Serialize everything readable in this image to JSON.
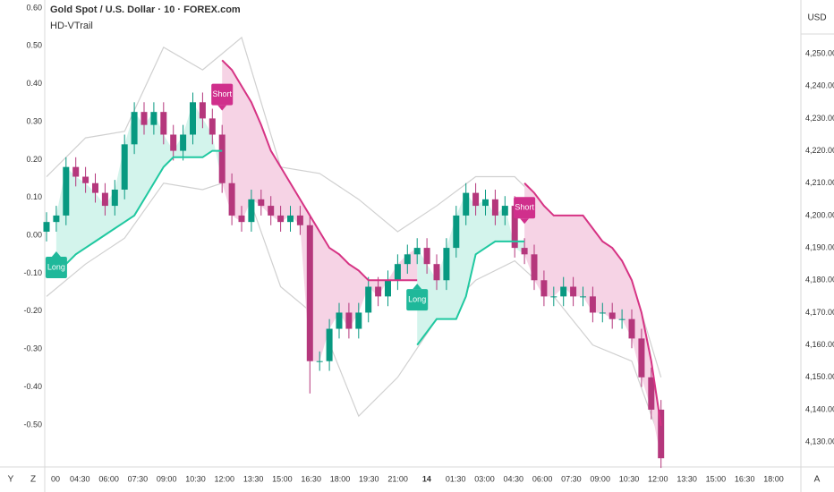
{
  "chart_data": {
    "type": "candlestick",
    "title": "Gold Spot / U.S. Dollar · 10 · FOREX.com",
    "subtitle": "HD-VTrail",
    "currency": "USD",
    "buttons": [
      "Y",
      "Z",
      "A"
    ],
    "x_labels": [
      "00",
      "04:30",
      "06:00",
      "07:30",
      "09:00",
      "10:30",
      "12:00",
      "13:30",
      "15:00",
      "16:30",
      "18:00",
      "19:30",
      "21:00",
      "14",
      "01:30",
      "03:00",
      "04:30",
      "06:00",
      "07:30",
      "09:00",
      "10:30",
      "12:00",
      "13:30",
      "15:00",
      "16:30",
      "18:00"
    ],
    "open": [
      4195,
      4198,
      4200,
      4215,
      4212,
      4210,
      4207,
      4203,
      4208,
      4222,
      4232,
      4228,
      4232,
      4225,
      4220,
      4225,
      4235,
      4230,
      4225,
      4210,
      4200,
      4198,
      4205,
      4203,
      4200,
      4198,
      4200,
      4197,
      4155,
      4155,
      4165,
      4170,
      4165,
      4170,
      4178,
      4175,
      4180,
      4185,
      4188,
      4190,
      4185,
      4180,
      4190,
      4200,
      4207,
      4203,
      4205,
      4200,
      4203,
      4190,
      4188,
      4180,
      4175,
      4175,
      4178,
      4175,
      4175,
      4170,
      4170,
      4168,
      4168,
      4162,
      4150,
      4140
    ],
    "high": [
      4201,
      4203,
      4218,
      4218,
      4215,
      4213,
      4210,
      4211,
      4225,
      4235,
      4235,
      4235,
      4235,
      4228,
      4228,
      4238,
      4238,
      4233,
      4228,
      4213,
      4203,
      4208,
      4208,
      4206,
      4203,
      4203,
      4203,
      4200,
      4158,
      4168,
      4173,
      4173,
      4173,
      4181,
      4181,
      4183,
      4188,
      4191,
      4193,
      4193,
      4188,
      4193,
      4203,
      4210,
      4210,
      4208,
      4208,
      4206,
      4206,
      4193,
      4191,
      4183,
      4178,
      4181,
      4181,
      4178,
      4178,
      4173,
      4173,
      4171,
      4171,
      4165,
      4153,
      4143
    ],
    "low": [
      4192,
      4195,
      4197,
      4209,
      4207,
      4204,
      4200,
      4200,
      4205,
      4219,
      4225,
      4225,
      4222,
      4217,
      4217,
      4222,
      4227,
      4222,
      4207,
      4197,
      4195,
      4195,
      4200,
      4197,
      4195,
      4195,
      4194,
      4145,
      4152,
      4152,
      4162,
      4162,
      4162,
      4167,
      4172,
      4172,
      4177,
      4182,
      4185,
      4182,
      4177,
      4177,
      4187,
      4197,
      4200,
      4200,
      4197,
      4197,
      4187,
      4185,
      4177,
      4172,
      4172,
      4172,
      4172,
      4172,
      4167,
      4167,
      4165,
      4165,
      4159,
      4147,
      4137,
      4122
    ],
    "close": [
      4198,
      4200,
      4215,
      4212,
      4210,
      4207,
      4203,
      4208,
      4222,
      4232,
      4228,
      4232,
      4225,
      4220,
      4225,
      4235,
      4230,
      4225,
      4210,
      4200,
      4198,
      4205,
      4203,
      4200,
      4198,
      4200,
      4197,
      4155,
      4155,
      4165,
      4170,
      4165,
      4170,
      4178,
      4175,
      4180,
      4185,
      4188,
      4190,
      4185,
      4180,
      4190,
      4200,
      4207,
      4203,
      4205,
      4200,
      4203,
      4190,
      4188,
      4180,
      4175,
      4175,
      4178,
      4175,
      4175,
      4170,
      4170,
      4168,
      4168,
      4162,
      4150,
      4140,
      4125
    ],
    "up_color": "#089981",
    "down_color": "#b5377c",
    "series": [
      {
        "color": "#1fc8a0",
        "fill": "#d3f4ec",
        "values": [
          null,
          4182,
          4185,
          4188,
          4190,
          4192,
          4194,
          4196,
          4198,
          4200,
          4205,
          4210,
          4215,
          4218,
          4218,
          4218,
          4218,
          4220,
          4220,
          null,
          null,
          null,
          null,
          null,
          null,
          null,
          null,
          null,
          null,
          null,
          null,
          null,
          null,
          null,
          null,
          null,
          null,
          null,
          4160,
          4164,
          4168,
          4168,
          4168,
          4175,
          4188,
          4190,
          4192,
          4192,
          4192,
          4192,
          null,
          null,
          null,
          null,
          null,
          null,
          null,
          null,
          null,
          null,
          null,
          null,
          null,
          null
        ]
      },
      {
        "color": "#d63384",
        "fill": "#f6d3e5",
        "values": [
          null,
          null,
          null,
          null,
          null,
          null,
          null,
          null,
          null,
          null,
          null,
          null,
          null,
          null,
          null,
          null,
          null,
          null,
          4248,
          4245,
          4240,
          4235,
          4228,
          4220,
          4215,
          4210,
          4205,
          4200,
          4195,
          4190,
          4188,
          4185,
          4183,
          4180,
          4180,
          4180,
          4180,
          4180,
          4180,
          null,
          null,
          null,
          null,
          null,
          null,
          null,
          null,
          null,
          null,
          4210,
          4207,
          4203,
          4200,
          4200,
          4200,
          4200,
          4196,
          4192,
          4190,
          4186,
          4180,
          4170,
          4155,
          4135
        ]
      }
    ],
    "bands": {
      "color": "#d0d0d0",
      "index": [
        0,
        4,
        8,
        12,
        16,
        20,
        24,
        28,
        32,
        36,
        40,
        44,
        48,
        52,
        56,
        60,
        63
      ],
      "upper": [
        4212,
        4224,
        4226,
        4252,
        4245,
        4255,
        4215,
        4213,
        4205,
        4195,
        4203,
        4212,
        4212,
        4200,
        4188,
        4180,
        4150
      ],
      "lower": [
        4175,
        4185,
        4193,
        4210,
        4208,
        4212,
        4178,
        4168,
        4138,
        4150,
        4168,
        4180,
        4186,
        4175,
        4160,
        4155,
        4130
      ]
    },
    "signals": [
      {
        "label": "Long",
        "at": 1,
        "color": "#1fb89a"
      },
      {
        "label": "Short",
        "at": 18,
        "color": "#d02f8c"
      },
      {
        "label": "Long",
        "at": 38,
        "color": "#1fb89a"
      },
      {
        "label": "Short",
        "at": 49,
        "color": "#d02f8c"
      }
    ],
    "ylim": [
      -0.611,
      0.621
    ],
    "yticks": [
      {
        "value": 0.6,
        "label": "0.60"
      },
      {
        "value": 0.5,
        "label": "0.50"
      },
      {
        "value": 0.4,
        "label": "0.40"
      },
      {
        "value": 0.3,
        "label": "0.30"
      },
      {
        "value": 0.2,
        "label": "0.20"
      },
      {
        "value": 0.1,
        "label": "0.10"
      },
      {
        "value": 0,
        "label": "0.00"
      },
      {
        "value": -0.1,
        "label": "-0.10"
      },
      {
        "value": -0.2,
        "label": "-0.20"
      },
      {
        "value": -0.3,
        "label": "-0.30"
      },
      {
        "value": -0.4,
        "label": "-0.40"
      },
      {
        "value": -0.5,
        "label": "-0.50"
      }
    ],
    "y2lim": [
      4122.3,
      4266.6
    ],
    "y2ticks": [
      {
        "value": 4250,
        "label": "4,250.00"
      },
      {
        "value": 4240,
        "label": "4,240.00"
      },
      {
        "value": 4230,
        "label": "4,230.00"
      },
      {
        "value": 4220,
        "label": "4,220.00"
      },
      {
        "value": 4210,
        "label": "4,210.00"
      },
      {
        "value": 4200,
        "label": "4,200.00"
      },
      {
        "value": 4190,
        "label": "4,190.00"
      },
      {
        "value": 4180,
        "label": "4,180.00"
      },
      {
        "value": 4170,
        "label": "4,170.00"
      },
      {
        "value": 4160,
        "label": "4,160.00"
      },
      {
        "value": 4150,
        "label": "4,150.00"
      },
      {
        "value": 4140,
        "label": "4,140.00"
      },
      {
        "value": 4130,
        "label": "4,130.00"
      }
    ]
  }
}
